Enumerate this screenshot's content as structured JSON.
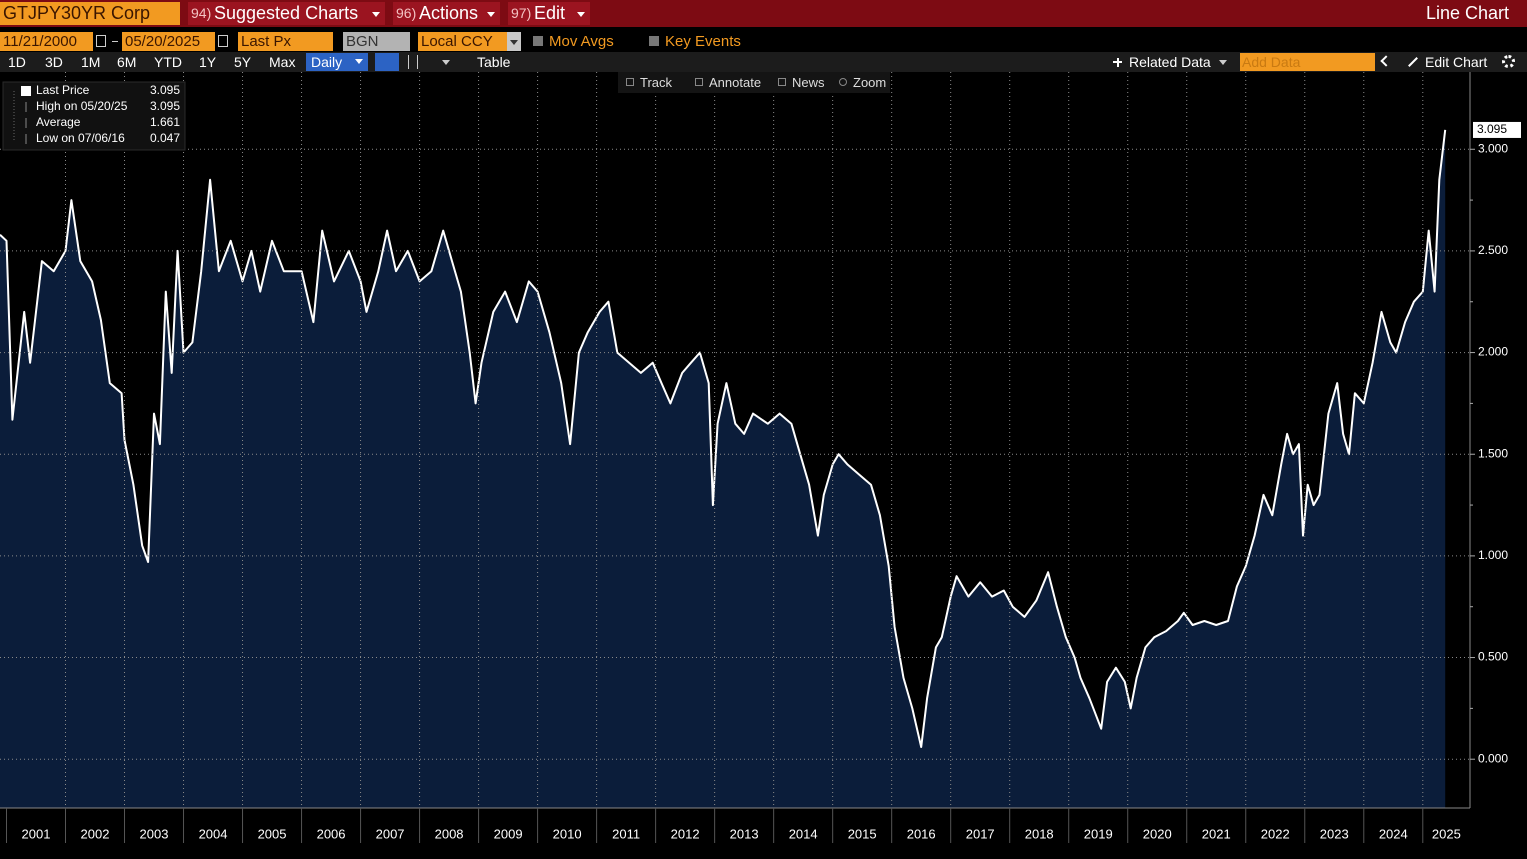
{
  "toolbar": {
    "security": "GTJPY30YR Corp",
    "menus": [
      {
        "num": "94)",
        "label": "Suggested Charts"
      },
      {
        "num": "96)",
        "label": "Actions"
      },
      {
        "num": "97)",
        "label": "Edit"
      }
    ],
    "view": "Line Chart"
  },
  "settings": {
    "start_date": "11/21/2000",
    "end_date": "05/20/2025",
    "field": "Last Px",
    "source": "BGN",
    "currency": "Local CCY",
    "options": [
      "Mov Avgs",
      "Key Events"
    ]
  },
  "range_bar": {
    "periods": [
      "1D",
      "3D",
      "1M",
      "6M",
      "YTD",
      "1Y",
      "5Y",
      "Max"
    ],
    "frequency": "Daily",
    "table": "Table",
    "related": "Related Data",
    "add_data": "Add Data",
    "edit_chart": "Edit Chart"
  },
  "tools": [
    "Track",
    "Annotate",
    "News",
    "Zoom"
  ],
  "chart_data": {
    "type": "area",
    "stats": [
      {
        "label": "High on 05/20/25",
        "value": 3.095
      },
      {
        "label": "Average",
        "value": 1.661
      },
      {
        "label": "Low on 07/06/16",
        "value": 0.047
      }
    ],
    "x": [
      2000.89,
      2001.0,
      2001.1,
      2001.3,
      2001.4,
      2001.6,
      2001.8,
      2002.0,
      2002.1,
      2002.25,
      2002.45,
      2002.6,
      2002.75,
      2002.95,
      2003.0,
      2003.15,
      2003.3,
      2003.4,
      2003.5,
      2003.6,
      2003.7,
      2003.8,
      2003.9,
      2004.0,
      2004.15,
      2004.3,
      2004.45,
      2004.6,
      2004.8,
      2005.0,
      2005.15,
      2005.3,
      2005.5,
      2005.7,
      2006.0,
      2006.2,
      2006.35,
      2006.55,
      2006.8,
      2007.0,
      2007.1,
      2007.3,
      2007.45,
      2007.6,
      2007.8,
      2008.0,
      2008.2,
      2008.4,
      2008.55,
      2008.7,
      2008.85,
      2008.95,
      2009.05,
      2009.25,
      2009.45,
      2009.65,
      2009.85,
      2010.0,
      2010.2,
      2010.4,
      2010.55,
      2010.7,
      2010.85,
      2011.05,
      2011.2,
      2011.35,
      2011.55,
      2011.75,
      2011.95,
      2012.1,
      2012.25,
      2012.45,
      2012.6,
      2012.75,
      2012.9,
      2012.97,
      2013.05,
      2013.2,
      2013.35,
      2013.5,
      2013.65,
      2013.9,
      2014.1,
      2014.3,
      2014.45,
      2014.6,
      2014.75,
      2014.85,
      2015.0,
      2015.1,
      2015.25,
      2015.45,
      2015.65,
      2015.8,
      2015.95,
      2016.05,
      2016.2,
      2016.35,
      2016.5,
      2016.6,
      2016.75,
      2016.85,
      2017.0,
      2017.1,
      2017.3,
      2017.5,
      2017.7,
      2017.9,
      2018.05,
      2018.25,
      2018.45,
      2018.65,
      2018.8,
      2018.95,
      2019.1,
      2019.2,
      2019.35,
      2019.55,
      2019.65,
      2019.8,
      2019.95,
      2020.05,
      2020.15,
      2020.3,
      2020.45,
      2020.65,
      2020.85,
      2020.95,
      2021.1,
      2021.3,
      2021.5,
      2021.7,
      2021.85,
      2022.0,
      2022.15,
      2022.3,
      2022.45,
      2022.6,
      2022.7,
      2022.8,
      2022.9,
      2022.97,
      2023.05,
      2023.15,
      2023.25,
      2023.4,
      2023.55,
      2023.65,
      2023.75,
      2023.85,
      2024.0,
      2024.15,
      2024.3,
      2024.45,
      2024.55,
      2024.7,
      2024.85,
      2025.0,
      2025.1,
      2025.2,
      2025.28,
      2025.38
    ],
    "series": [
      {
        "name": "Last Price",
        "color": "#ffffff",
        "fill": "#0b1d3a",
        "values": [
          2.58,
          2.55,
          1.67,
          2.2,
          1.95,
          2.45,
          2.4,
          2.5,
          2.75,
          2.45,
          2.35,
          2.16,
          1.85,
          1.8,
          1.57,
          1.35,
          1.05,
          0.97,
          1.7,
          1.55,
          2.3,
          1.9,
          2.5,
          2.0,
          2.05,
          2.4,
          2.85,
          2.4,
          2.55,
          2.35,
          2.5,
          2.3,
          2.55,
          2.4,
          2.4,
          2.15,
          2.6,
          2.35,
          2.5,
          2.35,
          2.2,
          2.4,
          2.6,
          2.4,
          2.5,
          2.35,
          2.4,
          2.6,
          2.45,
          2.3,
          2.0,
          1.75,
          1.95,
          2.2,
          2.3,
          2.15,
          2.35,
          2.3,
          2.1,
          1.85,
          1.55,
          2.0,
          2.1,
          2.2,
          2.25,
          2.0,
          1.95,
          1.9,
          1.95,
          1.85,
          1.75,
          1.9,
          1.95,
          2.0,
          1.85,
          1.25,
          1.65,
          1.85,
          1.65,
          1.6,
          1.7,
          1.65,
          1.7,
          1.65,
          1.5,
          1.35,
          1.1,
          1.3,
          1.45,
          1.5,
          1.45,
          1.4,
          1.35,
          1.2,
          0.95,
          0.65,
          0.4,
          0.25,
          0.06,
          0.3,
          0.55,
          0.6,
          0.8,
          0.9,
          0.8,
          0.87,
          0.8,
          0.83,
          0.75,
          0.7,
          0.78,
          0.92,
          0.75,
          0.6,
          0.5,
          0.4,
          0.3,
          0.15,
          0.38,
          0.45,
          0.38,
          0.25,
          0.4,
          0.55,
          0.6,
          0.63,
          0.68,
          0.72,
          0.66,
          0.68,
          0.66,
          0.68,
          0.85,
          0.95,
          1.1,
          1.3,
          1.2,
          1.45,
          1.6,
          1.5,
          1.55,
          1.1,
          1.35,
          1.25,
          1.3,
          1.7,
          1.85,
          1.6,
          1.5,
          1.8,
          1.75,
          1.95,
          2.2,
          2.05,
          2.0,
          2.15,
          2.25,
          2.3,
          2.6,
          2.3,
          2.85,
          3.095
        ]
      }
    ],
    "xlim": [
      2000.89,
      2025.8
    ],
    "xticks": [
      2001,
      2002,
      2003,
      2004,
      2005,
      2006,
      2007,
      2008,
      2009,
      2010,
      2011,
      2012,
      2013,
      2014,
      2015,
      2016,
      2017,
      2018,
      2019,
      2020,
      2021,
      2022,
      2023,
      2024,
      2025
    ],
    "ylim": [
      -0.24,
      3.38
    ],
    "yticks": [
      {
        "value": 0,
        "label": "0.000"
      },
      {
        "value": 0.5,
        "label": "0.500"
      },
      {
        "value": 1,
        "label": "1.000"
      },
      {
        "value": 1.5,
        "label": "1.500"
      },
      {
        "value": 2,
        "label": "2.000"
      },
      {
        "value": 2.5,
        "label": "2.500"
      },
      {
        "value": 3,
        "label": "3.000"
      }
    ],
    "grid": true
  }
}
